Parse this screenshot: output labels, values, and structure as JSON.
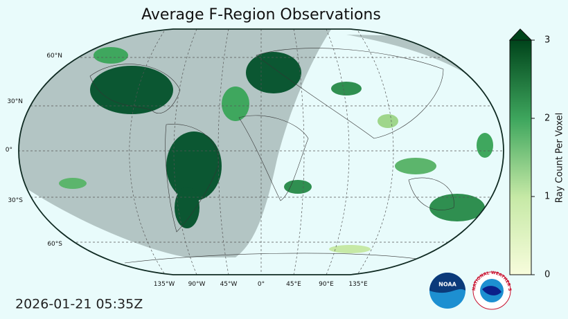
{
  "header": {
    "title": "Average F-Region Observations"
  },
  "map": {
    "lat_labels": [
      "60°N",
      "30°N",
      "0°",
      "30°S",
      "60°S"
    ],
    "lon_labels": [
      "135°W",
      "90°W",
      "45°W",
      "0°",
      "45°E",
      "90°E",
      "135°E"
    ]
  },
  "colorbar": {
    "label": "Ray Count Per Voxel",
    "ticks": [
      0,
      1,
      2,
      3
    ]
  },
  "timestamp": "2026-01-21 05:35Z",
  "logos": {
    "noaa": "NOAA",
    "nws": "NATIONAL WEATHER SERVICE"
  }
}
